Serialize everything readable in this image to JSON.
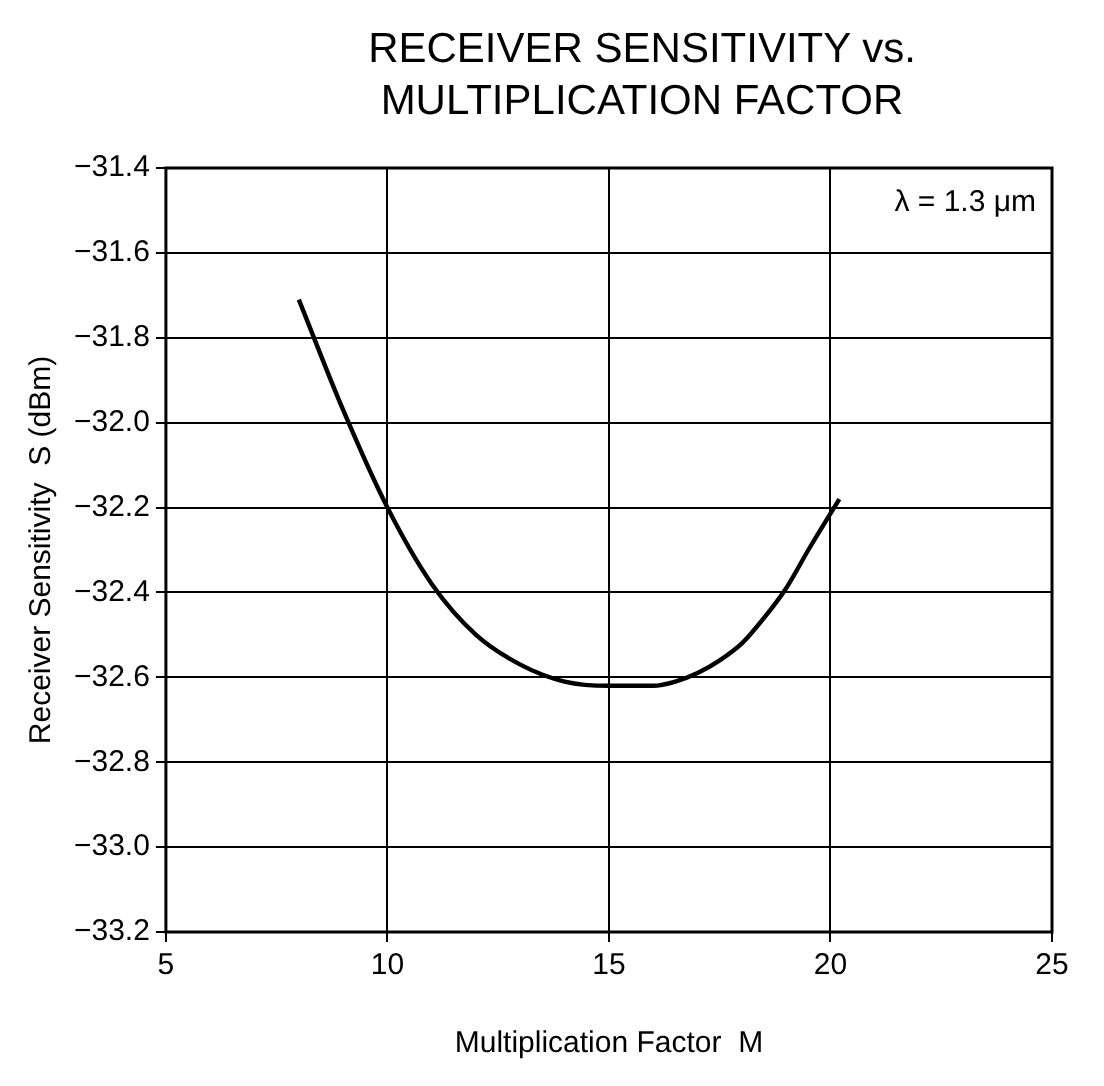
{
  "chart_data": {
    "type": "line",
    "title": "RECEIVER SENSITIVITY vs. MULTIPLICATION FACTOR",
    "xlabel": "Multiplication Factor  M",
    "ylabel": "Receiver Sensitivity  S (dBm)",
    "annotations": [
      "λ = 1.3 μm"
    ],
    "series": [
      {
        "color": "#000000",
        "x": [
          8,
          9,
          10,
          11,
          12,
          13,
          14,
          15,
          16,
          16.5,
          17,
          17.5,
          18,
          18.5,
          19,
          19.5,
          20.2
        ],
        "values": [
          -31.71,
          -31.97,
          -32.2,
          -32.38,
          -32.5,
          -32.57,
          -32.61,
          -32.62,
          -32.62,
          -32.61,
          -32.59,
          -32.56,
          -32.52,
          -32.46,
          -32.39,
          -32.3,
          -32.18
        ]
      }
    ],
    "xlim": [
      5,
      25
    ],
    "xticks": [
      5,
      10,
      15,
      20,
      25
    ],
    "ylim": [
      -33.2,
      -31.4
    ],
    "yticks": [
      {
        "value": -33.2,
        "label": "−33.2"
      },
      {
        "value": -33.0,
        "label": "−33.0"
      },
      {
        "value": -32.8,
        "label": "−32.8"
      },
      {
        "value": -32.6,
        "label": "−32.6"
      },
      {
        "value": -32.4,
        "label": "−32.4"
      },
      {
        "value": -32.2,
        "label": "−32.2"
      },
      {
        "value": -32.0,
        "label": "−32.0"
      },
      {
        "value": -31.8,
        "label": "−31.8"
      },
      {
        "value": -31.6,
        "label": "−31.6"
      },
      {
        "value": -31.4,
        "label": "−31.4"
      }
    ],
    "grid": true,
    "marker": "none",
    "line_style": "solid"
  }
}
